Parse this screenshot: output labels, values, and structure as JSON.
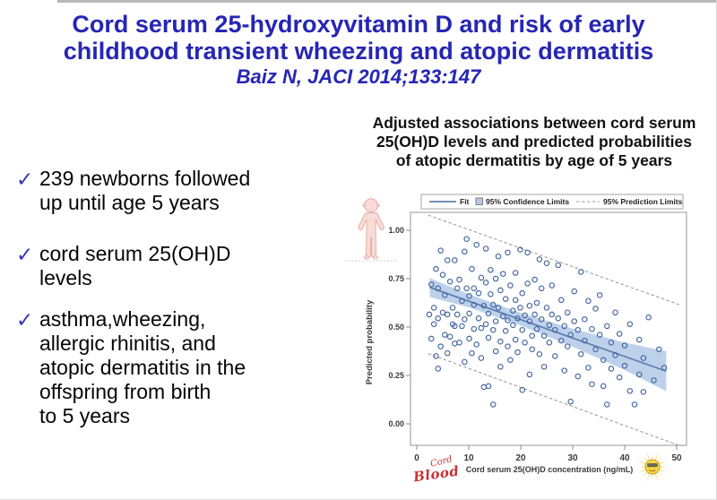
{
  "slide": {
    "title_line1": "Cord serum 25-hydroxyvitamin D and risk of early",
    "title_line2": "childhood transient wheezing and atopic dermatitis",
    "citation": "Baiz N, JACI 2014;133:147",
    "title_color": "#2626b4",
    "check_glyph": "✓",
    "bullets": [
      {
        "lines": [
          "239 newborns followed",
          "up until age 5 years"
        ]
      },
      {
        "lines": [
          "cord serum 25(OH)D",
          "levels"
        ]
      },
      {
        "lines": [
          "asthma,wheezing,",
          "allergic rhinitis, and",
          "atopic dermatitis in the",
          "offspring from birth",
          "to 5 years"
        ]
      }
    ]
  },
  "chart_heading": {
    "lines": [
      "Adjusted associations between cord serum",
      "25(OH)D levels and predicted probabilities",
      "of atopic dermatitis by age of 5 years"
    ]
  },
  "chart_data": {
    "type": "scatter",
    "xlabel": "Cord serum 25(OH)D concentration (ng/mL)",
    "ylabel": "Predicted probability",
    "xlim": [
      -1.2,
      51.9
    ],
    "ylim": [
      -0.11,
      1.09
    ],
    "xticks": [
      0,
      10,
      20,
      30,
      40,
      50
    ],
    "yticks": [
      0,
      0.25,
      0.5,
      0.75,
      1
    ],
    "grid": false,
    "legend": [
      "Fit",
      "95% Confidence Limits",
      "95% Prediction Limits"
    ],
    "legend_position": "top",
    "fit_line": {
      "x": [
        2.5,
        48
      ],
      "y": [
        0.705,
        0.272
      ]
    },
    "confidence_band": {
      "x": [
        2.5,
        10,
        20,
        30,
        40,
        48
      ],
      "upper": [
        0.753,
        0.67,
        0.573,
        0.492,
        0.42,
        0.375
      ],
      "lower": [
        0.655,
        0.602,
        0.508,
        0.398,
        0.278,
        0.168
      ]
    },
    "prediction_limits": {
      "upper_x": [
        2.2,
        50.8
      ],
      "upper_y": [
        1.078,
        0.613
      ],
      "lower_x": [
        2.2,
        50.8
      ],
      "lower_y": [
        0.363,
        -0.115
      ]
    },
    "colors": {
      "fit": "#5b7fae",
      "band": "#b3c9e8",
      "point": "#44679f",
      "dashed": "#9e9e9e"
    },
    "points": [
      [
        2.4,
        0.565
      ],
      [
        2.8,
        0.72
      ],
      [
        2.8,
        0.44
      ],
      [
        3.3,
        0.6
      ],
      [
        3.3,
        0.515
      ],
      [
        3.7,
        0.8
      ],
      [
        3.7,
        0.35
      ],
      [
        4.1,
        0.545
      ],
      [
        4.1,
        0.7
      ],
      [
        4.1,
        0.285
      ],
      [
        4.6,
        0.895
      ],
      [
        4.6,
        0.4
      ],
      [
        5.0,
        0.575
      ],
      [
        5.0,
        0.77
      ],
      [
        5.4,
        0.46
      ],
      [
        5.4,
        0.665
      ],
      [
        5.9,
        0.845
      ],
      [
        5.9,
        0.365
      ],
      [
        5.9,
        0.565
      ],
      [
        6.4,
        0.735
      ],
      [
        6.4,
        0.45
      ],
      [
        6.9,
        0.6
      ],
      [
        6.9,
        0.515
      ],
      [
        7.3,
        0.845
      ],
      [
        7.3,
        0.505
      ],
      [
        7.3,
        0.415
      ],
      [
        7.8,
        0.7
      ],
      [
        7.8,
        0.565
      ],
      [
        8.2,
        0.42
      ],
      [
        8.2,
        0.745
      ],
      [
        8.7,
        0.505
      ],
      [
        8.7,
        0.635
      ],
      [
        9.2,
        0.89
      ],
      [
        9.2,
        0.54
      ],
      [
        9.2,
        0.32
      ],
      [
        9.6,
        0.955
      ],
      [
        9.6,
        0.7
      ],
      [
        10.1,
        0.66
      ],
      [
        10.1,
        0.44
      ],
      [
        10.1,
        0.57
      ],
      [
        10.6,
        0.8
      ],
      [
        10.6,
        0.365
      ],
      [
        11.0,
        0.615
      ],
      [
        11.0,
        0.49
      ],
      [
        11.0,
        0.7
      ],
      [
        11.5,
        0.925
      ],
      [
        11.5,
        0.41
      ],
      [
        11.9,
        0.545
      ],
      [
        11.9,
        0.675
      ],
      [
        12.4,
        0.755
      ],
      [
        12.4,
        0.495
      ],
      [
        12.4,
        0.34
      ],
      [
        12.9,
        0.61
      ],
      [
        12.9,
        0.19
      ],
      [
        13.3,
        0.905
      ],
      [
        13.3,
        0.515
      ],
      [
        13.3,
        0.73
      ],
      [
        13.8,
        0.195
      ],
      [
        13.8,
        0.57
      ],
      [
        13.8,
        0.445
      ],
      [
        14.2,
        0.67
      ],
      [
        14.2,
        0.795
      ],
      [
        14.7,
        0.1
      ],
      [
        14.7,
        0.485
      ],
      [
        14.7,
        0.615
      ],
      [
        15.2,
        0.75
      ],
      [
        15.2,
        0.375
      ],
      [
        15.2,
        0.53
      ],
      [
        15.7,
        0.865
      ],
      [
        15.7,
        0.6
      ],
      [
        16.1,
        0.425
      ],
      [
        16.1,
        0.69
      ],
      [
        16.1,
        0.295
      ],
      [
        16.6,
        0.555
      ],
      [
        16.6,
        0.775
      ],
      [
        17.1,
        0.48
      ],
      [
        17.1,
        0.645
      ],
      [
        17.5,
        0.885
      ],
      [
        17.5,
        0.4
      ],
      [
        17.5,
        0.535
      ],
      [
        18.0,
        0.715
      ],
      [
        18.0,
        0.33
      ],
      [
        18.5,
        0.585
      ],
      [
        18.5,
        0.51
      ],
      [
        19.0,
        0.64
      ],
      [
        19.0,
        0.78
      ],
      [
        19.0,
        0.435
      ],
      [
        19.4,
        0.545
      ],
      [
        19.4,
        0.37
      ],
      [
        19.9,
        0.9
      ],
      [
        19.9,
        0.6
      ],
      [
        20.3,
        0.175
      ],
      [
        20.3,
        0.485
      ],
      [
        20.3,
        0.675
      ],
      [
        20.8,
        0.56
      ],
      [
        20.8,
        0.42
      ],
      [
        21.3,
        0.885
      ],
      [
        21.3,
        0.725
      ],
      [
        21.7,
        0.53
      ],
      [
        21.7,
        0.61
      ],
      [
        21.7,
        0.255
      ],
      [
        22.2,
        0.455
      ],
      [
        22.2,
        0.385
      ],
      [
        22.7,
        0.745
      ],
      [
        22.7,
        0.565
      ],
      [
        23.1,
        0.625
      ],
      [
        23.1,
        0.49
      ],
      [
        23.6,
        0.85
      ],
      [
        23.6,
        0.36
      ],
      [
        24.0,
        0.54
      ],
      [
        24.0,
        0.7
      ],
      [
        24.5,
        0.455
      ],
      [
        24.5,
        0.295
      ],
      [
        25.0,
        0.83
      ],
      [
        25.0,
        0.6
      ],
      [
        25.5,
        0.51
      ],
      [
        25.5,
        0.42
      ],
      [
        26.0,
        0.565
      ],
      [
        26.0,
        0.715
      ],
      [
        26.6,
        0.35
      ],
      [
        26.6,
        0.485
      ],
      [
        27.2,
        0.82
      ],
      [
        27.2,
        0.545
      ],
      [
        27.8,
        0.43
      ],
      [
        27.8,
        0.64
      ],
      [
        28.4,
        0.275
      ],
      [
        28.4,
        0.505
      ],
      [
        29.0,
        0.575
      ],
      [
        29.0,
        0.4
      ],
      [
        29.6,
        0.115
      ],
      [
        29.6,
        0.46
      ],
      [
        30.3,
        0.685
      ],
      [
        30.3,
        0.53
      ],
      [
        31.0,
        0.245
      ],
      [
        31.0,
        0.485
      ],
      [
        31.6,
        0.785
      ],
      [
        31.6,
        0.36
      ],
      [
        32.3,
        0.54
      ],
      [
        32.3,
        0.43
      ],
      [
        33.0,
        0.29
      ],
      [
        33.0,
        0.635
      ],
      [
        33.7,
        0.49
      ],
      [
        33.7,
        0.205
      ],
      [
        34.4,
        0.595
      ],
      [
        34.4,
        0.385
      ],
      [
        35.2,
        0.665
      ],
      [
        35.2,
        0.46
      ],
      [
        35.9,
        0.195
      ],
      [
        35.9,
        0.33
      ],
      [
        36.6,
        0.1
      ],
      [
        36.6,
        0.505
      ],
      [
        37.4,
        0.42
      ],
      [
        37.4,
        0.285
      ],
      [
        38.2,
        0.575
      ],
      [
        38.2,
        0.355
      ],
      [
        39.0,
        0.24
      ],
      [
        39.0,
        0.465
      ],
      [
        40.0,
        0.405
      ],
      [
        40.0,
        0.3
      ],
      [
        41.0,
        0.515
      ],
      [
        41.0,
        0.17
      ],
      [
        41.9,
        0.1
      ],
      [
        42.8,
        0.435
      ],
      [
        42.8,
        0.255
      ],
      [
        43.6,
        0.34
      ],
      [
        43.6,
        0.165
      ],
      [
        44.6,
        0.55
      ],
      [
        45.6,
        0.225
      ],
      [
        46.6,
        0.385
      ],
      [
        47.6,
        0.29
      ]
    ]
  },
  "logos": {
    "cord": "Cord",
    "blood": "Blood"
  }
}
